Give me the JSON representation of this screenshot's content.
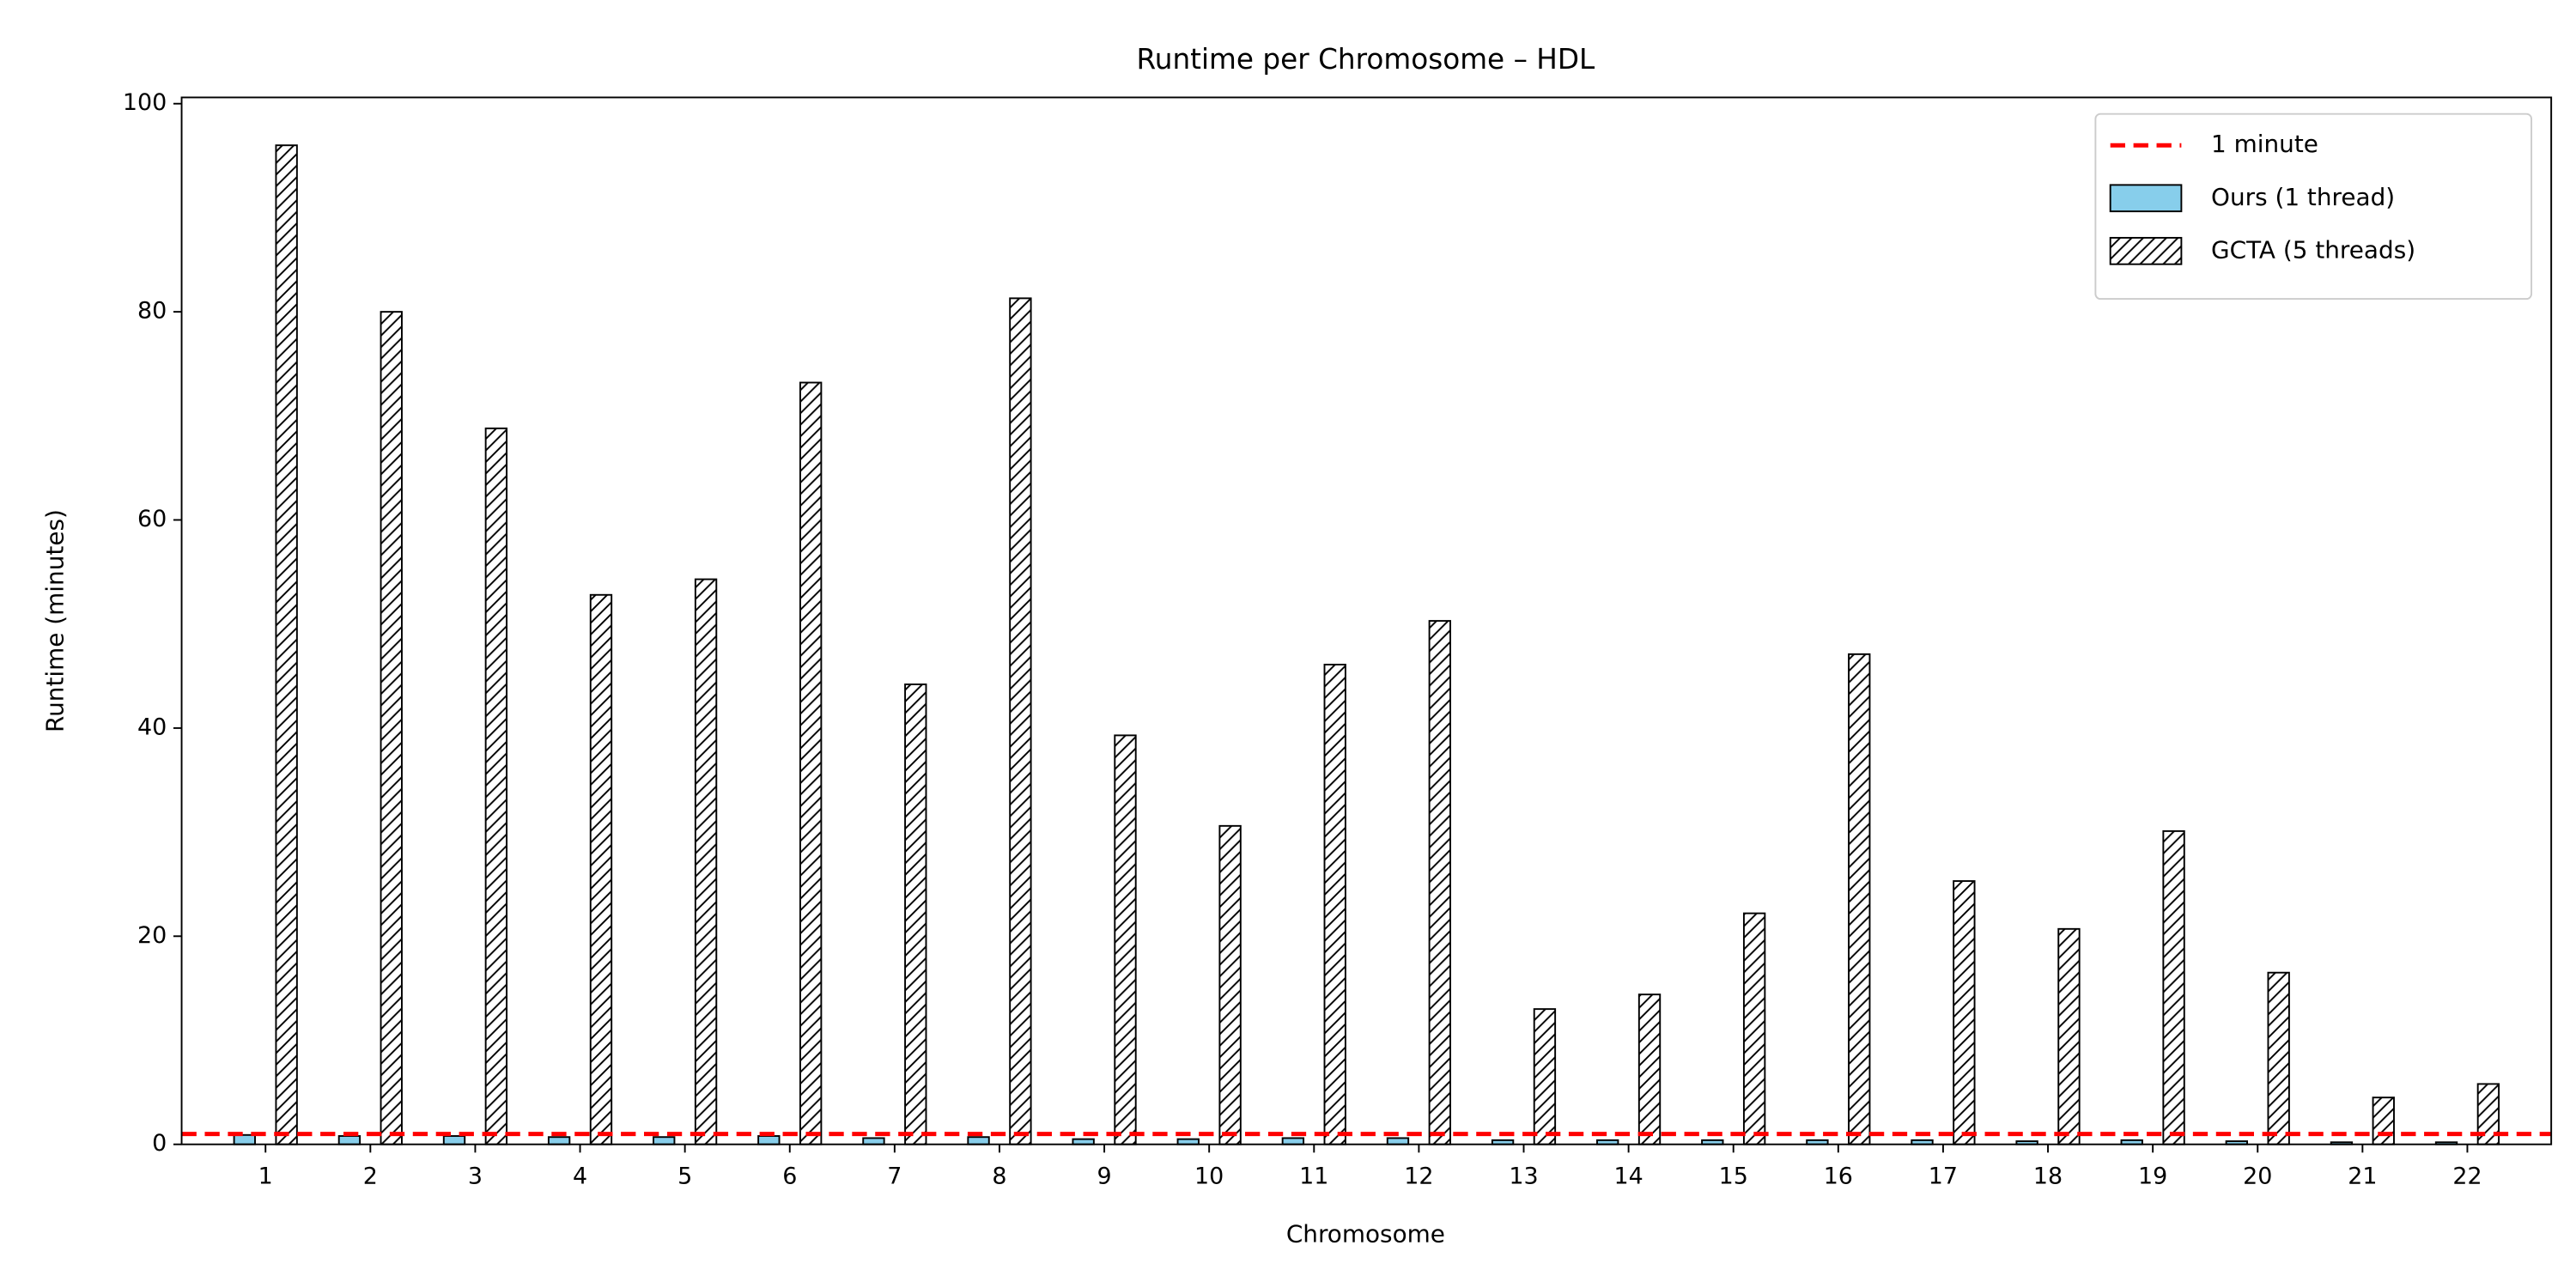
{
  "chart_data": {
    "type": "bar",
    "title": "Runtime per Chromosome – HDL",
    "xlabel": "Chromosome",
    "ylabel": "Runtime (minutes)",
    "categories": [
      "1",
      "2",
      "3",
      "4",
      "5",
      "6",
      "7",
      "8",
      "9",
      "10",
      "11",
      "12",
      "13",
      "14",
      "15",
      "16",
      "17",
      "18",
      "19",
      "20",
      "21",
      "22"
    ],
    "series": [
      {
        "name": "Ours (1 thread)",
        "color": "#87ceeb",
        "values": [
          0.9,
          0.8,
          0.8,
          0.7,
          0.7,
          0.8,
          0.6,
          0.7,
          0.5,
          0.5,
          0.6,
          0.6,
          0.4,
          0.4,
          0.4,
          0.4,
          0.4,
          0.3,
          0.4,
          0.3,
          0.2,
          0.2
        ]
      },
      {
        "name": "GCTA (5 threads)",
        "color": "#ffffff",
        "hatch": "//",
        "values": [
          96,
          80,
          68.8,
          52.8,
          54.3,
          73.2,
          44.2,
          81.3,
          39.3,
          30.6,
          46.1,
          50.3,
          13,
          14.4,
          22.2,
          47.1,
          25.3,
          20.7,
          30.1,
          16.5,
          4.5,
          5.8
        ]
      }
    ],
    "reference_line": {
      "name": "1 minute",
      "value": 1,
      "color": "#ff0000"
    },
    "ylim": [
      0,
      100.6
    ],
    "yticks": [
      0,
      20,
      40,
      60,
      80,
      100
    ],
    "legend": "upper right"
  }
}
